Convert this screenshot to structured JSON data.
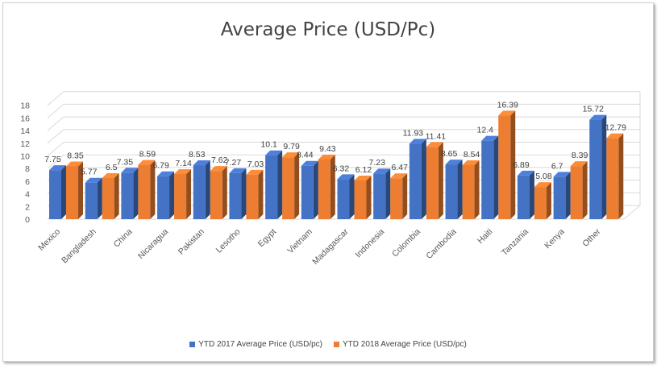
{
  "chart_data": {
    "type": "bar",
    "title": "Average Price (USD/Pc)",
    "categories": [
      "Mexico",
      "Bangladesh",
      "China",
      "Nicaragua",
      "Pakistan",
      "Lesotho",
      "Egypt",
      "Vietnam",
      "Madagascar",
      "Indonesia",
      "Colombia",
      "Cambodia",
      "Haiti",
      "Tanzania",
      "Kenya",
      "Other"
    ],
    "series": [
      {
        "name": "YTD 2017 Average Price (USD/pc)",
        "color": "#4472c4",
        "values": [
          7.75,
          5.77,
          7.35,
          6.79,
          8.53,
          7.27,
          10.1,
          8.44,
          6.32,
          7.23,
          11.93,
          8.65,
          12.4,
          6.89,
          6.7,
          15.72
        ],
        "labels": [
          "7.75",
          "5.77",
          "7.35",
          "6.79",
          "8.53",
          "7.27",
          "10.1",
          "8.44",
          "6.32",
          "7.23",
          "11.93",
          "8.65",
          "12.4",
          "6.89",
          "6.7",
          "15.72"
        ]
      },
      {
        "name": "YTD 2018 Average Price (USD/pc)",
        "color": "#ed7d31",
        "values": [
          8.35,
          6.5,
          8.59,
          7.14,
          7.62,
          7.03,
          9.79,
          9.43,
          6.12,
          6.47,
          11.41,
          8.54,
          16.39,
          5.08,
          8.39,
          12.79
        ],
        "labels": [
          "8.35",
          "6.5",
          "8.59",
          "7.14",
          "7.62",
          "7.03",
          "9.79",
          "9.43",
          "6.12",
          "6.47",
          "11.41",
          "8.54",
          "16.39",
          "5.08",
          "8.39",
          "12.79"
        ]
      }
    ],
    "yticks": [
      "0",
      "2",
      "4",
      "6",
      "8",
      "10",
      "12",
      "14",
      "16",
      "18"
    ],
    "ylim": [
      0,
      18
    ],
    "grid": true,
    "legend_position": "bottom"
  }
}
